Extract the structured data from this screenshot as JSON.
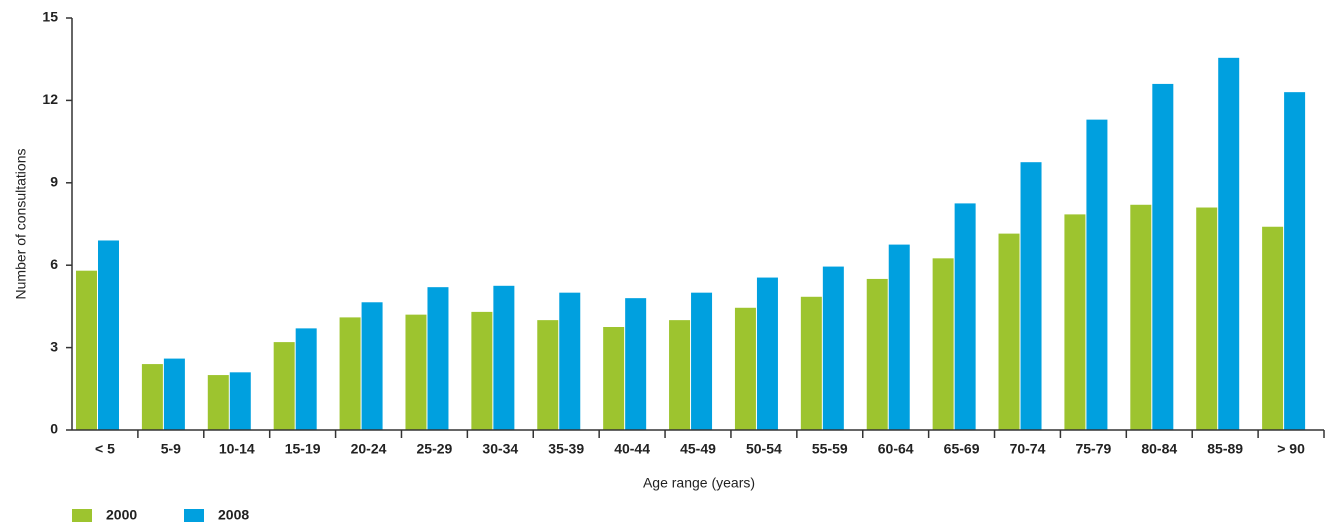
{
  "chart_data": {
    "type": "bar",
    "y_label": "Number of consultations",
    "x_label": "Age range (years)",
    "categories": [
      "< 5",
      "5-9",
      "10-14",
      "15-19",
      "20-24",
      "25-29",
      "30-34",
      "35-39",
      "40-44",
      "45-49",
      "50-54",
      "55-59",
      "60-64",
      "65-69",
      "70-74",
      "75-79",
      "80-84",
      "85-89",
      "> 90"
    ],
    "series": [
      {
        "name": "2000",
        "color": "#9dc42f",
        "values": [
          5.8,
          2.4,
          2.0,
          3.2,
          4.1,
          4.2,
          4.3,
          4.0,
          3.75,
          4.0,
          4.45,
          4.85,
          5.5,
          6.25,
          7.15,
          7.85,
          8.2,
          8.1,
          7.4
        ]
      },
      {
        "name": "2008",
        "color": "#00a0df",
        "values": [
          6.9,
          2.6,
          2.1,
          3.7,
          4.65,
          5.2,
          5.25,
          5.0,
          4.8,
          5.0,
          5.55,
          5.95,
          6.75,
          8.25,
          9.75,
          11.3,
          12.6,
          13.55,
          12.3
        ]
      }
    ],
    "ylim": [
      0,
      15
    ],
    "yticks": [
      0,
      3,
      6,
      9,
      12,
      15
    ],
    "grid": false
  }
}
